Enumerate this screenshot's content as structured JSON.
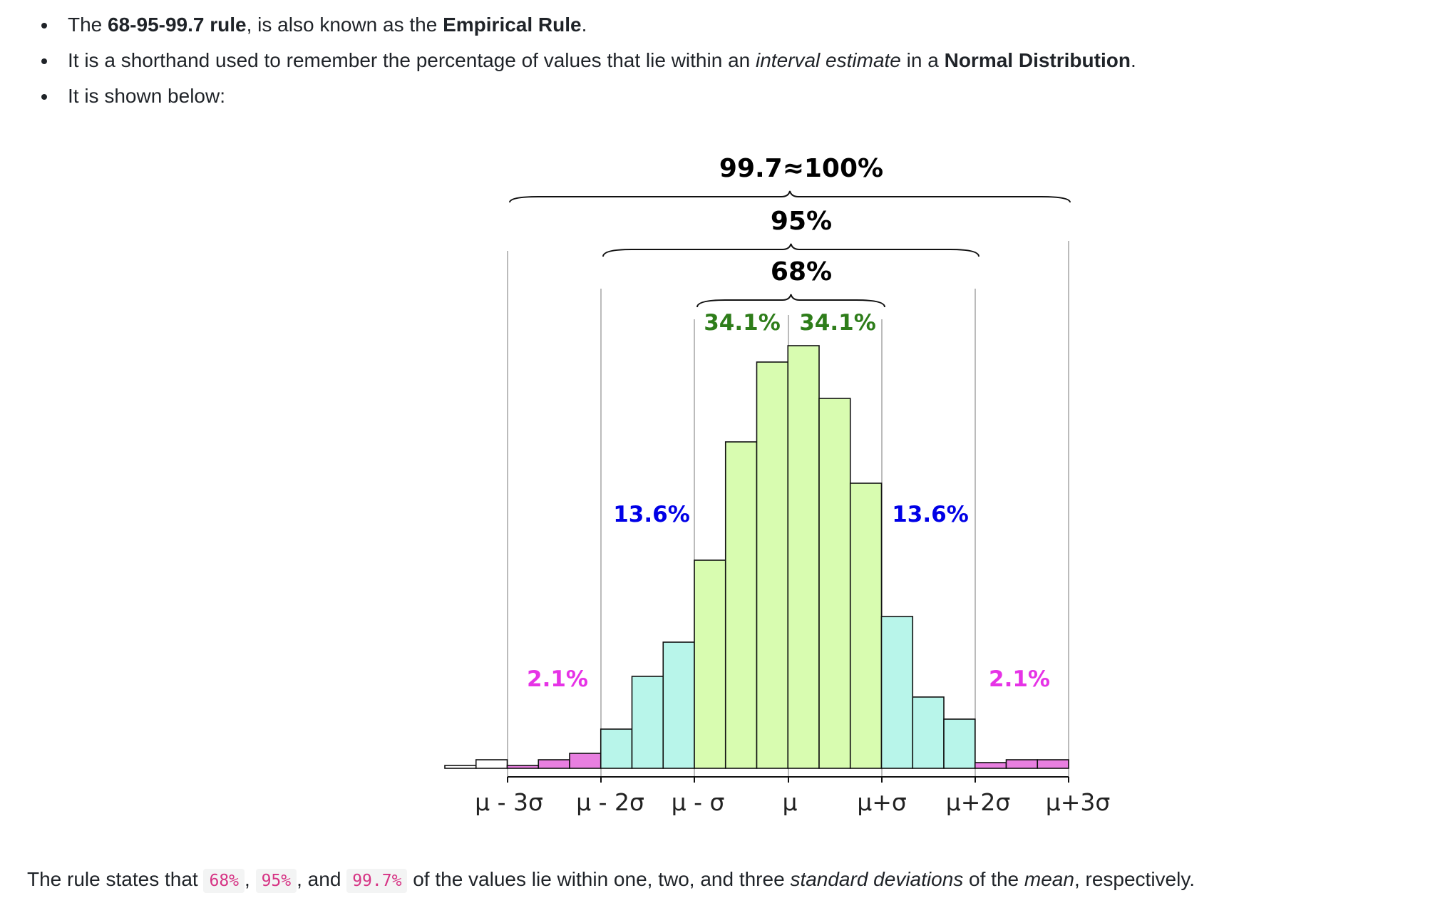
{
  "bullets": [
    {
      "pre": "The ",
      "b1": "68-95-99.7 rule",
      "mid": ", is also known as the ",
      "b2": "Empirical Rule",
      "post": "."
    },
    {
      "pre": "It is a shorthand used to remember the percentage of values that lie within an ",
      "em": "interval estimate",
      "mid": " in a ",
      "b1": "Normal Distribution",
      "post": "."
    },
    {
      "text": "It is shown below:"
    }
  ],
  "figure": {
    "bracket_labels": {
      "p997": "99.7≈100%",
      "p95": "95%",
      "p68": "68%"
    },
    "region_labels": {
      "left_inner": "34.1%",
      "right_inner": "34.1%",
      "left_mid": "13.6%",
      "right_mid": "13.6%",
      "left_outer": "2.1%",
      "right_outer": "2.1%"
    },
    "tick_labels": [
      "μ - 3σ",
      "μ - 2σ",
      "μ - σ",
      "μ",
      "μ+σ",
      "μ+2σ",
      "μ+3σ"
    ],
    "bars": [
      {
        "height": 4,
        "color": "#ffffff"
      },
      {
        "height": 12,
        "color": "#ffffff"
      },
      {
        "height": 4,
        "color": "#e87fe0"
      },
      {
        "height": 12,
        "color": "#e87fe0"
      },
      {
        "height": 21,
        "color": "#e87fe0"
      },
      {
        "height": 55,
        "color": "#b8f5ea"
      },
      {
        "height": 129,
        "color": "#b8f5ea"
      },
      {
        "height": 177,
        "color": "#b8f5ea"
      },
      {
        "height": 292,
        "color": "#d8fcb0"
      },
      {
        "height": 458,
        "color": "#d8fcb0"
      },
      {
        "height": 570,
        "color": "#d8fcb0"
      },
      {
        "height": 593,
        "color": "#d8fcb0"
      },
      {
        "height": 519,
        "color": "#d8fcb0"
      },
      {
        "height": 400,
        "color": "#d8fcb0"
      },
      {
        "height": 213,
        "color": "#b8f5ea"
      },
      {
        "height": 100,
        "color": "#b8f5ea"
      },
      {
        "height": 69,
        "color": "#b8f5ea"
      },
      {
        "height": 8,
        "color": "#e87fe0"
      },
      {
        "height": 12,
        "color": "#e87fe0"
      },
      {
        "height": 12,
        "color": "#e87fe0"
      }
    ],
    "colors": {
      "inner": "#2e7d1a",
      "middle": "#0000e6",
      "outer": "#e633e6"
    }
  },
  "summary": {
    "pre": "The rule states that ",
    "c1": "68%",
    "sep1": ", ",
    "c2": "95%",
    "sep2": ", and ",
    "c3": "99.7%",
    "mid": " of the values lie within one, two, and three ",
    "em1": "standard deviations",
    "mid2": " of the ",
    "em2": "mean",
    "post": ", respectively."
  }
}
